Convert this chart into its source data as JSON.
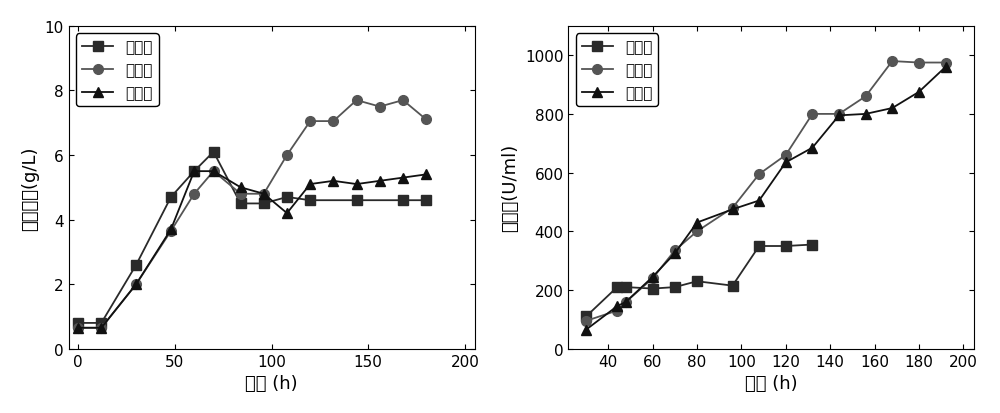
{
  "chart1": {
    "xlabel": "时间 (h)",
    "ylabel": "细胞干重(g/L)",
    "xlim": [
      -5,
      205
    ],
    "ylim": [
      0,
      10
    ],
    "xticks": [
      0,
      50,
      100,
      150,
      200
    ],
    "yticks": [
      0,
      2,
      4,
      6,
      8,
      10
    ],
    "series": {
      "初始组": {
        "x": [
          0,
          12,
          30,
          48,
          60,
          70,
          84,
          96,
          108,
          120,
          144,
          168,
          180
        ],
        "y": [
          0.8,
          0.8,
          2.6,
          4.7,
          5.5,
          6.1,
          4.5,
          4.5,
          4.7,
          4.6,
          4.6,
          4.6,
          4.6
        ],
        "marker": "s",
        "color": "#2a2a2a"
      },
      "补氨水": {
        "x": [
          0,
          12,
          30,
          48,
          60,
          70,
          84,
          96,
          108,
          120,
          132,
          144,
          156,
          168,
          180
        ],
        "y": [
          0.65,
          0.65,
          2.0,
          3.65,
          4.8,
          5.5,
          4.8,
          4.8,
          6.0,
          7.05,
          7.05,
          7.7,
          7.5,
          7.7,
          7.1
        ],
        "marker": "o",
        "color": "#555555"
      },
      "补硫铵": {
        "x": [
          0,
          12,
          30,
          48,
          60,
          70,
          84,
          96,
          108,
          120,
          132,
          144,
          156,
          168,
          180
        ],
        "y": [
          0.65,
          0.65,
          2.0,
          3.7,
          5.5,
          5.5,
          5.0,
          4.8,
          4.2,
          5.1,
          5.2,
          5.1,
          5.2,
          5.3,
          5.4
        ],
        "marker": "^",
        "color": "#111111"
      }
    },
    "legend_labels": [
      "初始组",
      "补氨水",
      "补硫铵"
    ]
  },
  "chart2": {
    "xlabel": "时间 (h)",
    "ylabel": "红霉素(U/ml)",
    "xlim": [
      22,
      205
    ],
    "ylim": [
      0,
      1100
    ],
    "xticks": [
      40,
      60,
      80,
      100,
      120,
      140,
      160,
      180,
      200
    ],
    "yticks": [
      0,
      200,
      400,
      600,
      800,
      1000
    ],
    "series": {
      "初始组": {
        "x": [
          30,
          44,
          48,
          60,
          70,
          80,
          96,
          108,
          120,
          132
        ],
        "y": [
          110,
          210,
          210,
          205,
          210,
          230,
          215,
          350,
          350,
          355
        ],
        "marker": "s",
        "color": "#2a2a2a"
      },
      "补氨水": {
        "x": [
          30,
          44,
          48,
          60,
          70,
          80,
          96,
          108,
          120,
          132,
          144,
          156,
          168,
          180,
          192
        ],
        "y": [
          95,
          130,
          160,
          240,
          335,
          400,
          480,
          595,
          660,
          800,
          800,
          860,
          980,
          975,
          975
        ],
        "marker": "o",
        "color": "#555555"
      },
      "补硫铵": {
        "x": [
          30,
          44,
          48,
          60,
          70,
          80,
          96,
          108,
          120,
          132,
          144,
          156,
          168,
          180,
          192
        ],
        "y": [
          65,
          145,
          160,
          245,
          325,
          430,
          475,
          505,
          635,
          685,
          795,
          800,
          820,
          875,
          960
        ],
        "marker": "^",
        "color": "#111111"
      }
    },
    "legend_labels": [
      "初始组",
      "补氨水",
      "补硫铵"
    ]
  },
  "background_color": "#ffffff",
  "line_width": 1.3,
  "marker_size": 7,
  "font_size": 13,
  "legend_font_size": 11,
  "tick_label_size": 11
}
